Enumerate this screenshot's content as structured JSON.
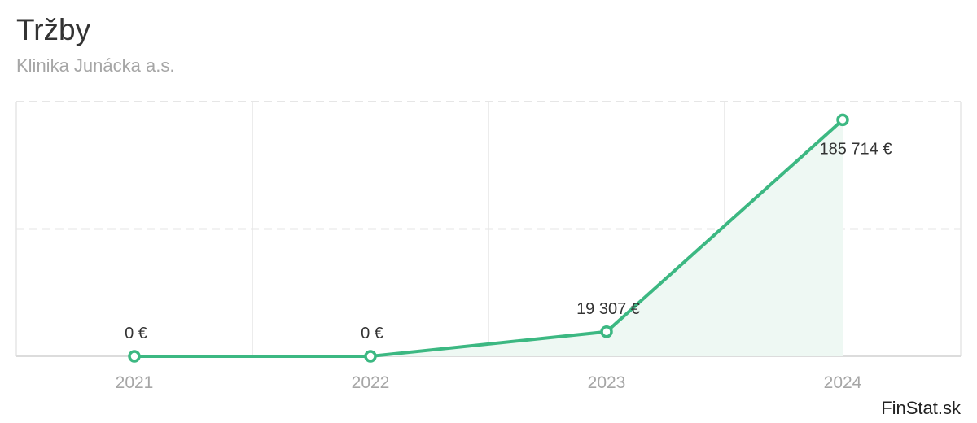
{
  "title": "Tržby",
  "subtitle": "Klinika Junácka a.s.",
  "brand": "FinStat.sk",
  "colors": {
    "line": "#3cb882",
    "area": "#eef8f3",
    "grid": "#e6e6e6"
  },
  "chart_data": {
    "type": "area",
    "categories": [
      "2021",
      "2022",
      "2023",
      "2024"
    ],
    "values": [
      0,
      0,
      19307,
      185714
    ],
    "labels": [
      "0 €",
      "0 €",
      "19 307 €",
      "185 714 €"
    ],
    "ylim": [
      0,
      200000
    ],
    "grid": true,
    "legend": "none"
  }
}
